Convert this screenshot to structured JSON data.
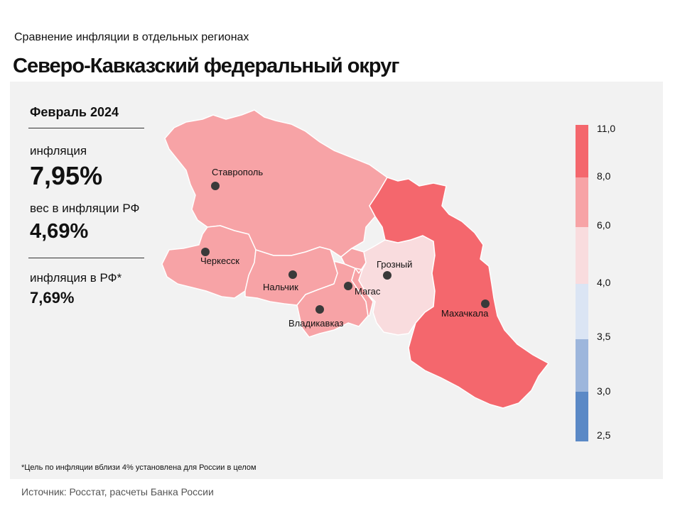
{
  "header": {
    "subtitle": "Сравнение  инфляции  в отдельных  регионах",
    "title": "Северо-Кавказский федеральный округ"
  },
  "stats": {
    "period": "Февраль 2024",
    "inflation_label": "инфляция",
    "inflation_value": "7,95%",
    "weight_label": "вес в инфляции  РФ",
    "weight_value": "4,69%",
    "rf_label": "инфляция  в РФ*",
    "rf_value": "7,69%"
  },
  "cities": {
    "stavropol": "Ставрополь",
    "cherkessk": "Черкесск",
    "nalchik": "Нальчик",
    "vladikavkaz": "Владикавказ",
    "magas": "Магас",
    "grozny": "Грозный",
    "makhachkala": "Махачкала"
  },
  "colors": {
    "high": "#f4676d",
    "mid": "#f7a3a6",
    "low": "#f9dcde",
    "blue_light": "#dbe5f4",
    "blue_mid": "#9db6dc",
    "blue_dark": "#5b89c6"
  },
  "scale": {
    "labels": [
      "11,0",
      "8,0",
      "6,0",
      "4,0",
      "3,5",
      "3,0",
      "2,5"
    ]
  },
  "footnote": "*Цель по инфляции вблизи 4% установлена для России в целом",
  "source": "Источник: Росстат, расчеты Банка России"
}
